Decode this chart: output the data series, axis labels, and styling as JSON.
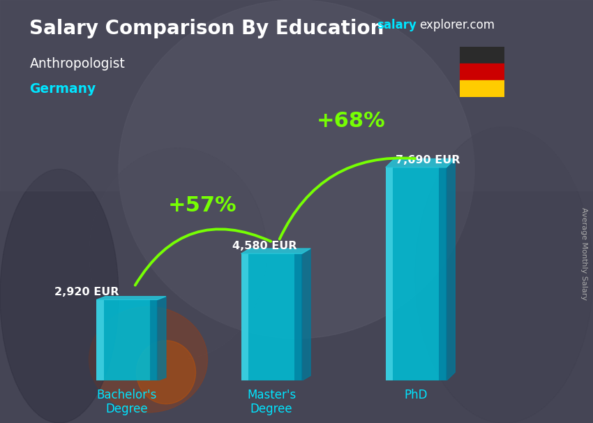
{
  "title": "Salary Comparison By Education",
  "subtitle": "Anthropologist",
  "country": "Germany",
  "categories": [
    "Bachelor's\nDegree",
    "Master's\nDegree",
    "PhD"
  ],
  "values": [
    2920,
    4580,
    7690
  ],
  "value_labels": [
    "2,920 EUR",
    "4,580 EUR",
    "7,690 EUR"
  ],
  "pct_labels": [
    "+57%",
    "+68%"
  ],
  "bar_color_face": "#00bcd4",
  "bar_color_left": "#4dd8e8",
  "bar_color_right": "#007a9c",
  "bar_color_top": "#26c6da",
  "bg_color": "#3a3a4a",
  "title_color": "#ffffff",
  "subtitle_color": "#ffffff",
  "country_color": "#00e5ff",
  "value_color": "#ffffff",
  "pct_color": "#76ff03",
  "arrow_color": "#76ff03",
  "site_color_salary": "#00e5ff",
  "site_color_rest": "#ffffff",
  "ylabel_text": "Average Monthly Salary",
  "ylabel_color": "#aaaaaa",
  "figsize": [
    8.5,
    6.06
  ],
  "dpi": 100
}
